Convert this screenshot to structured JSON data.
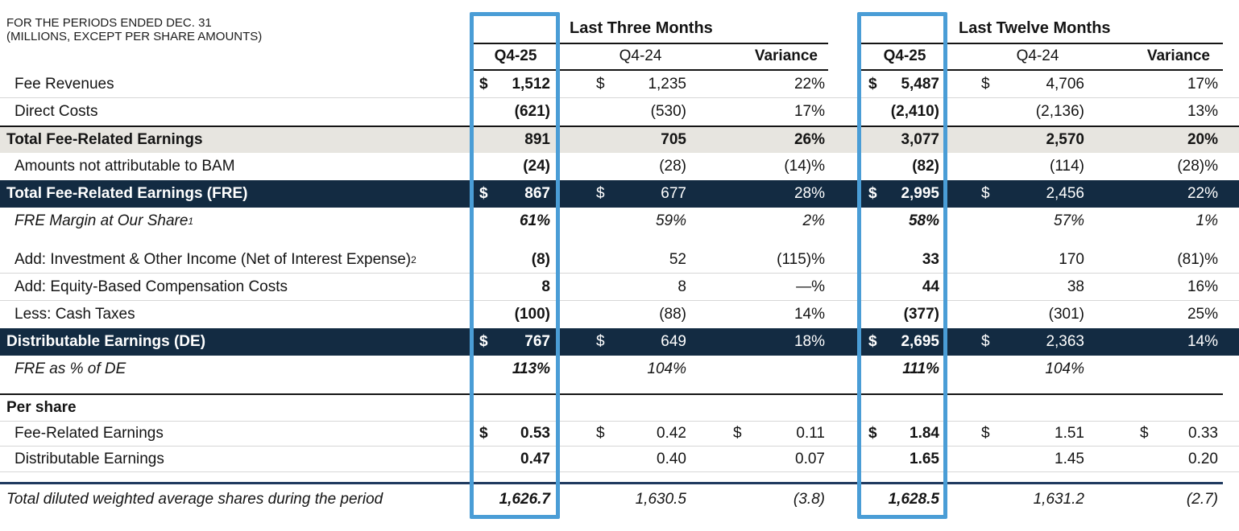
{
  "title_block": {
    "line1": "FOR THE PERIODS ENDED DEC. 31",
    "line2": "(MILLIONS, EXCEPT PER SHARE AMOUNTS)"
  },
  "groups": {
    "three_months": "Last Three Months",
    "twelve_months": "Last Twelve Months"
  },
  "column_headers": {
    "q425": "Q4-25",
    "q424": "Q4-24",
    "variance": "Variance"
  },
  "colors": {
    "highlight_blue": "#4a9dd6",
    "navy_row": "#132b42",
    "gray_row": "#e7e5e0",
    "rule_navy": "#1f3a5f"
  },
  "table": {
    "rows": [
      {
        "type": "plain",
        "sep_bottom": true,
        "label": "Fee Revenues",
        "cells": [
          {
            "d": "$",
            "v": "1,512"
          },
          {
            "d": "$",
            "v": "1,235"
          },
          {
            "v": "22%"
          },
          {
            "d": "$",
            "v": "5,487"
          },
          {
            "d": "$",
            "v": "4,706"
          },
          {
            "v": "17%"
          }
        ]
      },
      {
        "type": "plain",
        "label": "Direct Costs",
        "cells": [
          {
            "v": "(621)"
          },
          {
            "v": "(530)"
          },
          {
            "v": "17%"
          },
          {
            "v": "(2,410)"
          },
          {
            "v": "(2,136)"
          },
          {
            "v": "13%"
          }
        ]
      },
      {
        "type": "gray_total",
        "label": "Total Fee-Related Earnings",
        "cells": [
          {
            "v": "891"
          },
          {
            "v": "705"
          },
          {
            "v": "26%"
          },
          {
            "v": "3,077"
          },
          {
            "v": "2,570"
          },
          {
            "v": "20%"
          }
        ]
      },
      {
        "type": "plain",
        "label": "Amounts not attributable to BAM",
        "cells": [
          {
            "v": "(24)"
          },
          {
            "v": "(28)"
          },
          {
            "v": "(14)%"
          },
          {
            "v": "(82)"
          },
          {
            "v": "(114)"
          },
          {
            "v": "(28)%"
          }
        ]
      },
      {
        "type": "navy_total",
        "label": "Total Fee-Related Earnings (FRE)",
        "cells": [
          {
            "d": "$",
            "v": "867"
          },
          {
            "d": "$",
            "v": "677"
          },
          {
            "v": "28%"
          },
          {
            "d": "$",
            "v": "2,995"
          },
          {
            "d": "$",
            "v": "2,456"
          },
          {
            "v": "22%"
          }
        ]
      },
      {
        "type": "italic",
        "label": "FRE Margin at Our Share",
        "sup": "1",
        "cells": [
          {
            "v": "61%"
          },
          {
            "v": "59%"
          },
          {
            "v": "2%"
          },
          {
            "v": "58%"
          },
          {
            "v": "57%"
          },
          {
            "v": "1%"
          }
        ]
      },
      {
        "type": "plain",
        "gap_before": true,
        "sep_bottom": true,
        "label": "Add: Investment & Other Income (Net of Interest Expense)",
        "sup": "2",
        "cells": [
          {
            "v": "(8)"
          },
          {
            "v": "52"
          },
          {
            "v": "(115)%"
          },
          {
            "v": "33"
          },
          {
            "v": "170"
          },
          {
            "v": "(81)%"
          }
        ]
      },
      {
        "type": "plain",
        "sep_bottom": true,
        "label": "Add: Equity-Based Compensation Costs",
        "cells": [
          {
            "v": "8"
          },
          {
            "v": "8"
          },
          {
            "v": "—%"
          },
          {
            "v": "44"
          },
          {
            "v": "38"
          },
          {
            "v": "16%"
          }
        ]
      },
      {
        "type": "plain",
        "label": "Less: Cash Taxes",
        "cells": [
          {
            "v": "(100)"
          },
          {
            "v": "(88)"
          },
          {
            "v": "14%"
          },
          {
            "v": "(377)"
          },
          {
            "v": "(301)"
          },
          {
            "v": "25%"
          }
        ]
      },
      {
        "type": "navy_total",
        "label": "Distributable Earnings (DE)",
        "cells": [
          {
            "d": "$",
            "v": "767"
          },
          {
            "d": "$",
            "v": "649"
          },
          {
            "v": "18%"
          },
          {
            "d": "$",
            "v": "2,695"
          },
          {
            "d": "$",
            "v": "2,363"
          },
          {
            "v": "14%"
          }
        ]
      },
      {
        "type": "italic",
        "label": "FRE as % of DE",
        "cells": [
          {
            "v": "113%"
          },
          {
            "v": "104%"
          },
          {
            "v": ""
          },
          {
            "v": "111%"
          },
          {
            "v": "104%"
          },
          {
            "v": ""
          }
        ]
      },
      {
        "rule": "black"
      },
      {
        "type": "section",
        "label": "Per share",
        "cells": [
          {
            "v": ""
          },
          {
            "v": ""
          },
          {
            "v": ""
          },
          {
            "v": ""
          },
          {
            "v": ""
          },
          {
            "v": ""
          }
        ]
      },
      {
        "type": "pershare",
        "sep_top": true,
        "sep_bottom": true,
        "label": "Fee-Related Earnings",
        "cells": [
          {
            "d": "$",
            "v": "0.53"
          },
          {
            "d": "$",
            "v": "0.42"
          },
          {
            "d": "$",
            "v": "0.11"
          },
          {
            "d": "$",
            "v": "1.84"
          },
          {
            "d": "$",
            "v": "1.51"
          },
          {
            "d": "$",
            "v": "0.33"
          }
        ]
      },
      {
        "type": "pershare",
        "sep_bottom": true,
        "label": "Distributable Earnings",
        "cells": [
          {
            "v": "0.47"
          },
          {
            "v": "0.40"
          },
          {
            "v": "0.07"
          },
          {
            "v": "1.65"
          },
          {
            "v": "1.45"
          },
          {
            "v": "0.20"
          }
        ]
      },
      {
        "rule": "navy"
      },
      {
        "type": "shares",
        "label": "Total diluted weighted average shares during the period",
        "cells": [
          {
            "v": "1,626.7"
          },
          {
            "v": "1,630.5"
          },
          {
            "v": "(3.8)"
          },
          {
            "v": "1,628.5"
          },
          {
            "v": "1,631.2"
          },
          {
            "v": "(2.7)"
          }
        ]
      }
    ]
  }
}
